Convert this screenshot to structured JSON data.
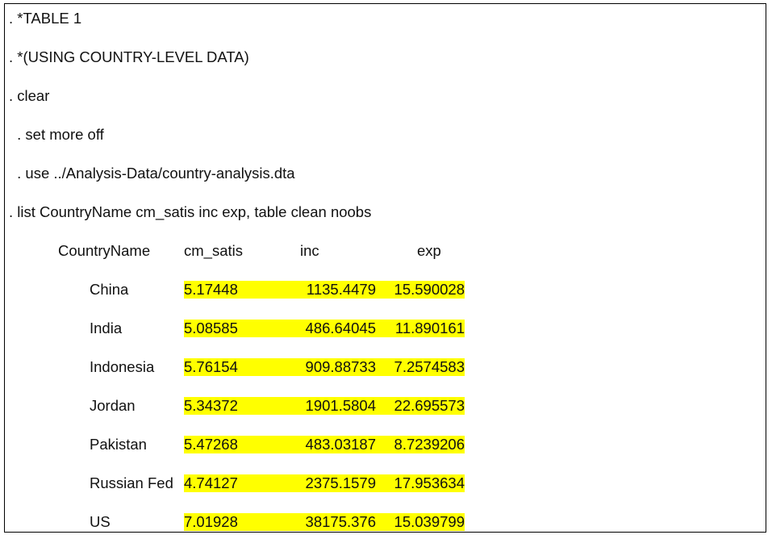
{
  "commands": [
    ". *TABLE 1",
    ". *(USING COUNTRY-LEVEL DATA)",
    ". clear",
    " . set more off",
    " . use ../Analysis-Data/country-analysis.dta",
    ". list CountryName cm_satis inc exp, table clean noobs"
  ],
  "table": {
    "headers": {
      "country": "CountryName",
      "cm_satis": "cm_satis",
      "inc": "inc",
      "exp": "exp"
    },
    "rows": [
      {
        "country": "China",
        "cm_satis": "5.17448",
        "inc": "1135.4479",
        "exp": "15.590028"
      },
      {
        "country": "India",
        "cm_satis": "5.08585",
        "inc": "486.64045",
        "exp": "11.890161"
      },
      {
        "country": "Indonesia",
        "cm_satis": "5.76154",
        "inc": "909.88733",
        "exp": "7.2574583"
      },
      {
        "country": "Jordan",
        "cm_satis": "5.34372",
        "inc": "1901.5804",
        "exp": "22.695573"
      },
      {
        "country": "Pakistan",
        "cm_satis": "5.47268",
        "inc": "483.03187",
        "exp": "8.7239206"
      },
      {
        "country": "Russian Fed",
        "cm_satis": "4.74127",
        "inc": "2375.1579",
        "exp": "17.953634"
      },
      {
        "country": "US",
        "cm_satis": "7.01928",
        "inc": "38175.376",
        "exp": "15.039799"
      }
    ]
  },
  "colors": {
    "highlight": "#ffff00",
    "border": "#000000",
    "text": "#111111"
  }
}
